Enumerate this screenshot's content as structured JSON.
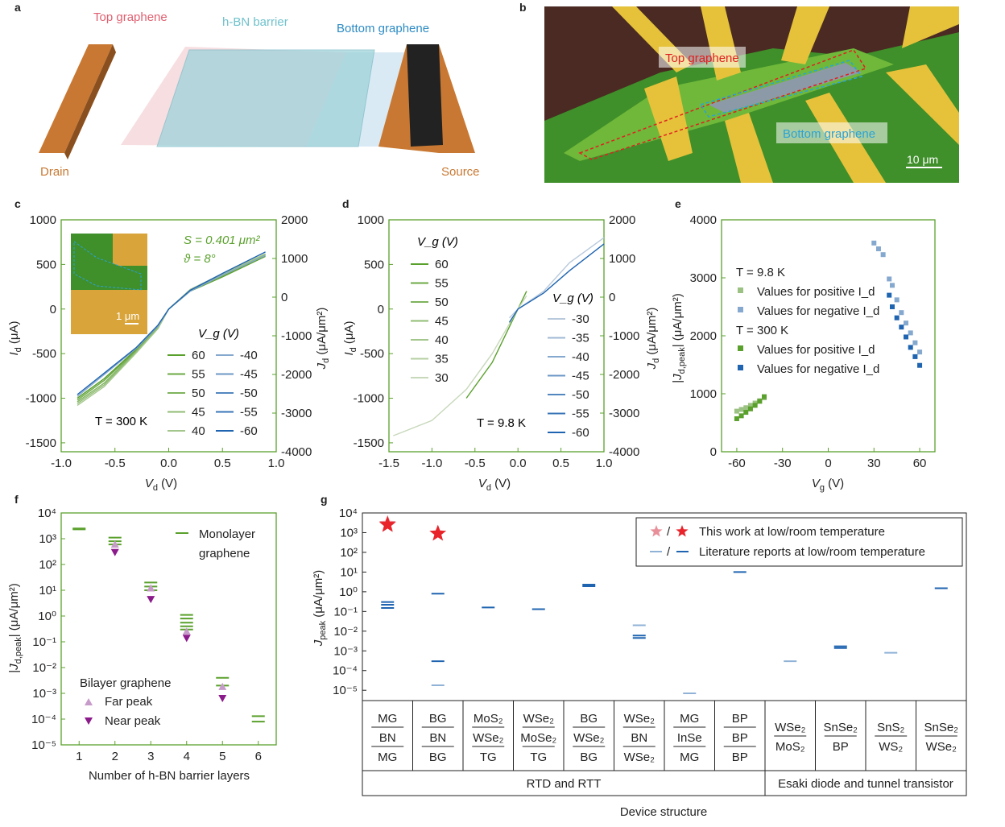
{
  "panel_letters": [
    "a",
    "b",
    "c",
    "d",
    "e",
    "f",
    "g"
  ],
  "panel_a": {
    "top_label": "Top graphene",
    "barrier_label": "h-BN barrier",
    "bottom_label": "Bottom graphene",
    "drain_label": "Drain",
    "source_label": "Source"
  },
  "panel_b": {
    "top_label": "Top graphene",
    "bottom_label": "Bottom graphene",
    "scale_bar": "10 μm"
  },
  "colors": {
    "green": "#5aa02c",
    "blue": "#1f64b0",
    "light_blue": "#8fb2d6",
    "pink": "#e8909a",
    "red": "#e8232a",
    "purple": "#8b1a8b",
    "light_purple": "#c79bc9",
    "orange": "#c87832",
    "cyan": "#7fc9d4",
    "frame": "#5aa02c"
  },
  "chart_data": [
    {
      "panel": "c",
      "type": "line",
      "xlabel": "V_d (V)",
      "ylabel": "I_d (μA)",
      "y2label": "J_d (μA/μm²)",
      "xlim": [
        -1.0,
        1.0
      ],
      "ylim": [
        -1600,
        1000
      ],
      "y2lim": [
        -4000,
        2000
      ],
      "xticks": [
        "-1.0",
        "-0.5",
        "0.0",
        "0.5",
        "1.0"
      ],
      "yticks": [
        "-1500",
        "-1000",
        "-500",
        "0",
        "500",
        "1000"
      ],
      "y2ticks": [
        "-4000",
        "-3000",
        "-2000",
        "-1000",
        "0",
        "1000",
        "2000"
      ],
      "annotations": {
        "temperature": "T = 300 K",
        "area": "S = 0.401 μm²",
        "angle": "ϑ = 8°",
        "inset_scale": "1 μm",
        "legend_title": "V_g (V)"
      },
      "legend_left": [
        "60",
        "55",
        "50",
        "45",
        "40"
      ],
      "legend_right": [
        "-40",
        "-45",
        "-50",
        "-55",
        "-60"
      ],
      "series": [
        {
          "name": "60",
          "values": [
            [
              -0.85,
              -1000
            ],
            [
              -0.6,
              -780
            ],
            [
              -0.3,
              -450
            ],
            [
              -0.1,
              -200
            ],
            [
              0.0,
              0
            ],
            [
              0.2,
              200
            ],
            [
              0.5,
              360
            ],
            [
              0.9,
              590
            ]
          ]
        },
        {
          "name": "55",
          "values": [
            [
              -0.85,
              -1020
            ],
            [
              -0.6,
              -800
            ],
            [
              -0.3,
              -460
            ],
            [
              -0.1,
              -205
            ],
            [
              0.0,
              0
            ],
            [
              0.2,
              205
            ],
            [
              0.5,
              370
            ],
            [
              0.9,
              600
            ]
          ]
        },
        {
          "name": "50",
          "values": [
            [
              -0.85,
              -1040
            ],
            [
              -0.6,
              -830
            ],
            [
              -0.3,
              -470
            ],
            [
              -0.1,
              -210
            ],
            [
              0.0,
              0
            ],
            [
              0.2,
              210
            ],
            [
              0.5,
              380
            ],
            [
              0.9,
              610
            ]
          ]
        },
        {
          "name": "45",
          "values": [
            [
              -0.85,
              -1060
            ],
            [
              -0.6,
              -850
            ],
            [
              -0.3,
              -480
            ],
            [
              -0.1,
              -215
            ],
            [
              0.0,
              0
            ],
            [
              0.2,
              215
            ],
            [
              0.5,
              390
            ],
            [
              0.9,
              615
            ]
          ]
        },
        {
          "name": "40",
          "values": [
            [
              -0.85,
              -1080
            ],
            [
              -0.6,
              -870
            ],
            [
              -0.3,
              -490
            ],
            [
              -0.1,
              -220
            ],
            [
              0.0,
              0
            ],
            [
              0.2,
              220
            ],
            [
              0.5,
              395
            ],
            [
              0.9,
              620
            ]
          ]
        },
        {
          "name": "-40",
          "values": [
            [
              -0.85,
              -980
            ],
            [
              -0.3,
              -440
            ],
            [
              -0.1,
              -190
            ],
            [
              0.0,
              0
            ],
            [
              0.2,
              200
            ],
            [
              0.5,
              380
            ],
            [
              0.9,
              600
            ]
          ]
        },
        {
          "name": "-60",
          "values": [
            [
              -0.85,
              -960
            ],
            [
              -0.3,
              -430
            ],
            [
              -0.1,
              -180
            ],
            [
              0.0,
              0
            ],
            [
              0.2,
              210
            ],
            [
              0.5,
              400
            ],
            [
              0.9,
              640
            ]
          ]
        }
      ]
    },
    {
      "panel": "d",
      "type": "line",
      "xlabel": "V_d (V)",
      "ylabel": "I_d (μA)",
      "y2label": "J_d (μA/μm²)",
      "xlim": [
        -1.5,
        1.0
      ],
      "ylim": [
        -1600,
        1000
      ],
      "y2lim": [
        -4000,
        2000
      ],
      "xticks": [
        "-1.5",
        "-1.0",
        "-0.5",
        "0.0",
        "0.5",
        "1.0"
      ],
      "yticks": [
        "-1500",
        "-1000",
        "-500",
        "0",
        "500",
        "1000"
      ],
      "y2ticks": [
        "-4000",
        "-3000",
        "-2000",
        "-1000",
        "0",
        "1000",
        "2000"
      ],
      "annotations": {
        "temperature": "T = 9.8 K",
        "legend_title": "V_g (V)",
        "legend_title_2": "V_g (V)"
      },
      "legend_left": [
        "60",
        "55",
        "50",
        "45",
        "40",
        "35",
        "30"
      ],
      "legend_right": [
        "-30",
        "-35",
        "-40",
        "-45",
        "-50",
        "-55",
        "-60"
      ],
      "series": [
        {
          "name": "60",
          "values": [
            [
              -0.6,
              -1000
            ],
            [
              -0.3,
              -600
            ],
            [
              -0.1,
              -200
            ],
            [
              0.0,
              0
            ],
            [
              0.1,
              200
            ]
          ]
        },
        {
          "name": "30",
          "values": [
            [
              -1.45,
              -1420
            ],
            [
              -1.0,
              -1250
            ],
            [
              -0.6,
              -900
            ],
            [
              -0.3,
              -500
            ],
            [
              0.0,
              0
            ],
            [
              0.1,
              150
            ]
          ]
        },
        {
          "name": "-30",
          "values": [
            [
              -0.1,
              -100
            ],
            [
              0.0,
              0
            ],
            [
              0.3,
              200
            ],
            [
              0.6,
              520
            ],
            [
              1.0,
              800
            ]
          ]
        },
        {
          "name": "-60",
          "values": [
            [
              -0.1,
              -150
            ],
            [
              0.0,
              0
            ],
            [
              0.3,
              180
            ],
            [
              0.6,
              430
            ],
            [
              1.0,
              730
            ]
          ]
        }
      ]
    },
    {
      "panel": "e",
      "type": "scatter",
      "xlabel": "V_g (V)",
      "ylabel": "|J_d,peak| (μA/μm²)",
      "xlim": [
        -70,
        70
      ],
      "ylim": [
        0,
        4000
      ],
      "xticks": [
        "-60",
        "-30",
        "0",
        "30",
        "60"
      ],
      "yticks": [
        "0",
        "1000",
        "2000",
        "3000",
        "4000"
      ],
      "legend_groups": [
        {
          "title": "T = 9.8 K",
          "entries": [
            "Values for positive I_d",
            "Values for negative I_d"
          ]
        },
        {
          "title": "T = 300 K",
          "entries": [
            "Values for positive I_d",
            "Values for negative I_d"
          ]
        }
      ],
      "series": [
        {
          "name": "9.8 K positive",
          "x": [
            -60,
            -57,
            -54,
            -51,
            -48,
            -45,
            -42
          ],
          "y": [
            700,
            730,
            760,
            800,
            840,
            880,
            930
          ]
        },
        {
          "name": "9.8 K negative",
          "x": [
            30,
            33,
            36,
            40,
            42,
            45,
            48,
            51,
            54,
            57,
            60
          ],
          "y": [
            3600,
            3500,
            3400,
            2980,
            2870,
            2620,
            2400,
            2220,
            2050,
            1880,
            1720
          ]
        },
        {
          "name": "300 K positive",
          "x": [
            -60,
            -57,
            -54,
            -51,
            -48,
            -45,
            -42
          ],
          "y": [
            570,
            620,
            680,
            740,
            800,
            870,
            950
          ]
        },
        {
          "name": "300 K negative",
          "x": [
            40,
            42,
            45,
            48,
            51,
            54,
            57,
            60
          ],
          "y": [
            2700,
            2500,
            2310,
            2150,
            1980,
            1800,
            1640,
            1490
          ]
        }
      ]
    },
    {
      "panel": "f",
      "type": "scatter",
      "xlabel": "Number of h-BN barrier layers",
      "ylabel": "|J_d,peak| (μA/μm²)",
      "yscale": "log",
      "xlim": [
        0.5,
        6.5
      ],
      "ylim": [
        1e-05,
        10000
      ],
      "xticks": [
        "1",
        "2",
        "3",
        "4",
        "5",
        "6"
      ],
      "yticks": [
        "10⁻⁵",
        "10⁻⁴",
        "10⁻³",
        "10⁻²",
        "10⁻¹",
        "10⁰",
        "10¹",
        "10²",
        "10³",
        "10⁴"
      ],
      "legend": {
        "mono_1": "Monolayer",
        "mono_2": "graphene",
        "bilayer_title": "Bilayer graphene",
        "far": "Far peak",
        "near": "Near peak"
      },
      "series": [
        {
          "name": "Monolayer graphene",
          "points": [
            [
              1,
              2500
            ],
            [
              1,
              2300
            ],
            [
              2,
              1100
            ],
            [
              2,
              800
            ],
            [
              2,
              600
            ],
            [
              3,
              20
            ],
            [
              3,
              14
            ],
            [
              3,
              10
            ],
            [
              4,
              1.1
            ],
            [
              4,
              0.8
            ],
            [
              4,
              0.55
            ],
            [
              4,
              0.4
            ],
            [
              4,
              0.3
            ],
            [
              5,
              0.004
            ],
            [
              5,
              0.002
            ],
            [
              6,
              0.00013
            ],
            [
              6,
              8e-05
            ]
          ]
        },
        {
          "name": "Far peak",
          "points": [
            [
              2,
              600
            ],
            [
              3,
              12
            ],
            [
              4,
              0.25
            ],
            [
              5,
              0.0018
            ]
          ]
        },
        {
          "name": "Near peak",
          "points": [
            [
              2,
              300
            ],
            [
              3,
              4.5
            ],
            [
              4,
              0.14
            ],
            [
              5,
              0.00065
            ]
          ]
        }
      ]
    },
    {
      "panel": "g",
      "type": "scatter",
      "xlabel": "Device structure",
      "ylabel": "J_peak (μA/μm²)",
      "yscale": "log",
      "ylim": [
        3e-06,
        10000
      ],
      "yticks": [
        "10⁻⁵",
        "10⁻⁴",
        "10⁻³",
        "10⁻²",
        "10⁻¹",
        "10⁰",
        "10¹",
        "10²",
        "10³",
        "10⁴"
      ],
      "legend": {
        "this_work": "This work at low/room temperature",
        "literature": "Literature reports at low/room temperature"
      },
      "categories": [
        [
          "MG",
          "BN",
          "MG"
        ],
        [
          "BG",
          "BN",
          "BG"
        ],
        [
          "MoS₂",
          "WSe₂",
          "TG"
        ],
        [
          "WSe₂",
          "MoSe₂",
          "TG"
        ],
        [
          "BG",
          "WSe₂",
          "BG"
        ],
        [
          "WSe₂",
          "BN",
          "WSe₂"
        ],
        [
          "MG",
          "InSe",
          "MG"
        ],
        [
          "BP",
          "BP",
          "BP"
        ],
        [
          "WSe₂",
          "MoS₂"
        ],
        [
          "SnSe₂",
          "BP"
        ],
        [
          "SnS₂",
          "WS₂"
        ],
        [
          "SnSe₂",
          "WSe₂"
        ]
      ],
      "groups": [
        {
          "label": "RTD and RTT",
          "span": 8
        },
        {
          "label": "Esaki diode and tunnel transistor",
          "span": 4
        }
      ],
      "stars": [
        {
          "cat": 0,
          "value": 2800,
          "kind": "low"
        },
        {
          "cat": 0,
          "value": 2500,
          "kind": "room"
        },
        {
          "cat": 1,
          "value": 900,
          "kind": "room"
        }
      ],
      "literature": [
        {
          "cat": 0,
          "value": 0.3,
          "kind": "room"
        },
        {
          "cat": 0,
          "value": 0.22,
          "kind": "room"
        },
        {
          "cat": 0,
          "value": 0.15,
          "kind": "room"
        },
        {
          "cat": 1,
          "value": 0.8,
          "kind": "room"
        },
        {
          "cat": 1,
          "value": 0.0003,
          "kind": "room"
        },
        {
          "cat": 1,
          "value": 1.8e-05,
          "kind": "low"
        },
        {
          "cat": 2,
          "value": 0.16,
          "kind": "room"
        },
        {
          "cat": 3,
          "value": 0.13,
          "kind": "room"
        },
        {
          "cat": 4,
          "value": 2.3,
          "kind": "room"
        },
        {
          "cat": 4,
          "value": 1.9,
          "kind": "room"
        },
        {
          "cat": 5,
          "value": 0.02,
          "kind": "low"
        },
        {
          "cat": 5,
          "value": 0.006,
          "kind": "room"
        },
        {
          "cat": 5,
          "value": 0.0045,
          "kind": "room"
        },
        {
          "cat": 6,
          "value": 7e-06,
          "kind": "low"
        },
        {
          "cat": 7,
          "value": 10,
          "kind": "room"
        },
        {
          "cat": 8,
          "value": 0.0003,
          "kind": "low"
        },
        {
          "cat": 9,
          "value": 0.0017,
          "kind": "room"
        },
        {
          "cat": 9,
          "value": 0.0014,
          "kind": "room"
        },
        {
          "cat": 10,
          "value": 0.0008,
          "kind": "low"
        },
        {
          "cat": 11,
          "value": 1.5,
          "kind": "room"
        }
      ]
    }
  ]
}
